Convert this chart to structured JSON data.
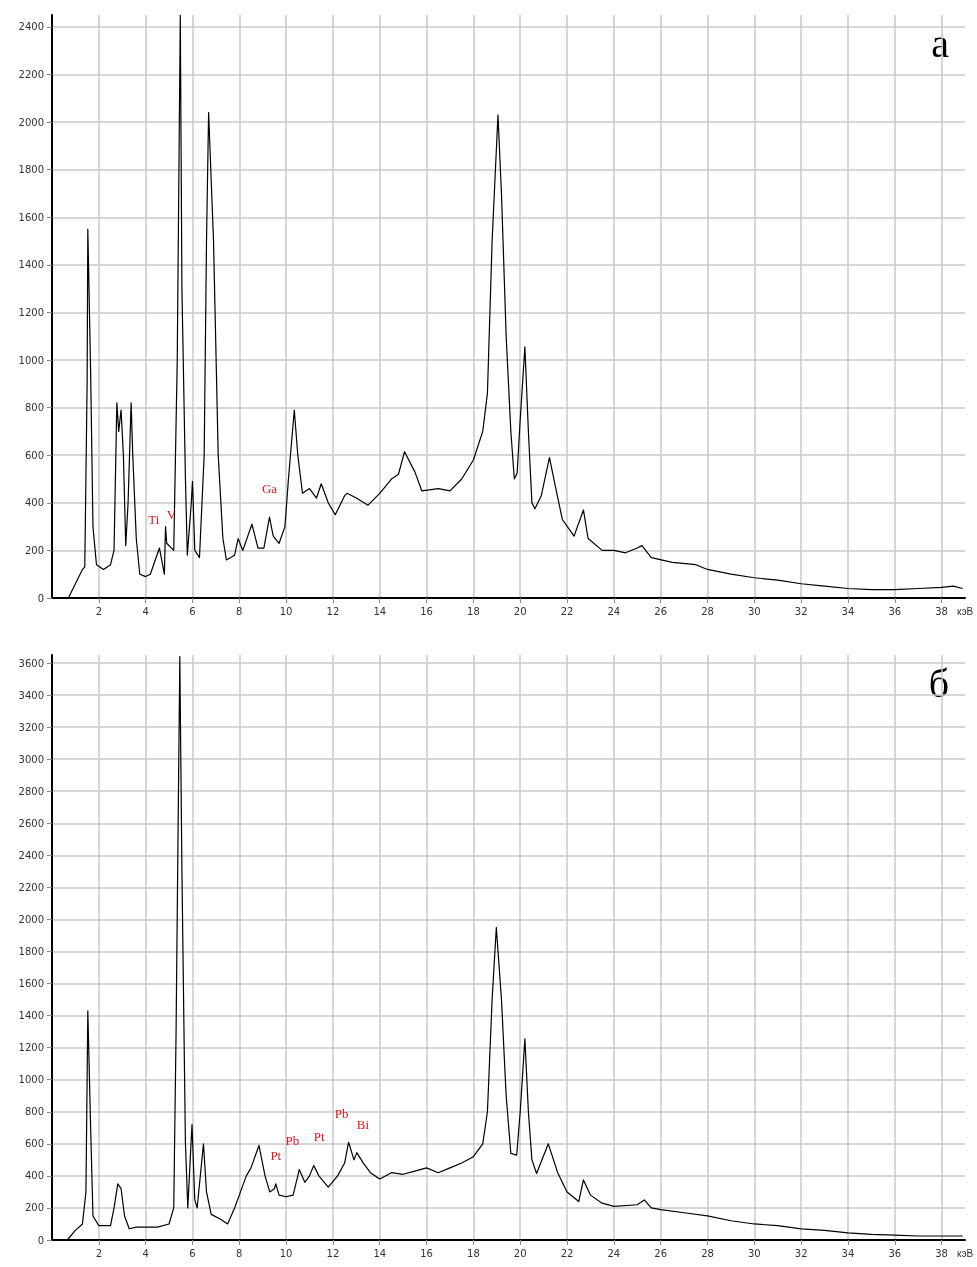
{
  "chart_data": [
    {
      "type": "line",
      "xlabel": "кэВ",
      "xlim": [
        0,
        39
      ],
      "xticks": [
        2,
        4,
        6,
        8,
        10,
        12,
        14,
        16,
        18,
        20,
        22,
        24,
        26,
        28,
        30,
        32,
        34,
        36,
        38
      ],
      "ylim": [
        0,
        2450
      ],
      "yticks": [
        0,
        200,
        400,
        600,
        800,
        1000,
        1200,
        1400,
        1600,
        1800,
        2000,
        2200,
        2400
      ],
      "grid": true,
      "marker": "none",
      "annotations": [
        "а",
        {
          "text": "Ti",
          "x": 4.59,
          "y": 210
        },
        {
          "text": "V",
          "x": 4.9,
          "y": 230
        },
        {
          "text": "Ga",
          "x": 9.29,
          "y": 340
        }
      ],
      "series": [
        {
          "color": "#000000",
          "x": [
            0.7,
            1.0,
            1.3,
            1.4,
            1.5,
            1.53,
            1.65,
            1.75,
            1.9,
            2.2,
            2.5,
            2.65,
            2.77,
            2.85,
            2.95,
            3.05,
            3.15,
            3.25,
            3.38,
            3.45,
            3.6,
            3.75,
            4.0,
            4.2,
            4.59,
            4.8,
            4.85,
            4.9,
            5.2,
            5.35,
            5.48,
            5.55,
            5.7,
            5.78,
            5.95,
            6.0,
            6.1,
            6.3,
            6.5,
            6.6,
            6.69,
            6.9,
            7.1,
            7.3,
            7.45,
            7.8,
            7.95,
            8.15,
            8.54,
            8.8,
            9.05,
            9.29,
            9.45,
            9.7,
            9.95,
            10.1,
            10.35,
            10.5,
            10.7,
            11.0,
            11.3,
            11.5,
            11.8,
            12.1,
            12.5,
            12.6,
            13.0,
            13.5,
            14.0,
            14.5,
            14.8,
            15.06,
            15.5,
            15.8,
            16.5,
            17.0,
            17.5,
            18.0,
            18.4,
            18.6,
            18.8,
            19.05,
            19.2,
            19.4,
            19.6,
            19.75,
            19.87,
            20.0,
            20.2,
            20.35,
            20.5,
            20.63,
            20.9,
            21.25,
            21.5,
            21.8,
            22.3,
            22.7,
            22.9,
            23.5,
            24.0,
            24.5,
            25.0,
            25.2,
            25.6,
            26.5,
            27.5,
            28.0,
            29.0,
            30.0,
            31.0,
            32.0,
            33.0,
            34.0,
            35.0,
            36.0,
            37.0,
            38.0,
            38.5,
            38.9
          ],
          "values": [
            0,
            60,
            120,
            130,
            900,
            1550,
            950,
            300,
            140,
            120,
            140,
            200,
            820,
            700,
            790,
            600,
            220,
            400,
            820,
            600,
            250,
            100,
            90,
            100,
            210,
            100,
            300,
            230,
            200,
            1000,
            2450,
            1300,
            500,
            180,
            400,
            490,
            200,
            170,
            600,
            1500,
            2040,
            1500,
            600,
            250,
            160,
            180,
            250,
            200,
            310,
            210,
            210,
            340,
            260,
            230,
            300,
            500,
            790,
            600,
            440,
            460,
            420,
            480,
            400,
            350,
            430,
            440,
            420,
            390,
            440,
            500,
            520,
            615,
            530,
            450,
            460,
            450,
            500,
            580,
            700,
            860,
            1500,
            2030,
            1700,
            1100,
            700,
            500,
            525,
            750,
            1055,
            700,
            400,
            375,
            430,
            590,
            470,
            330,
            260,
            370,
            250,
            200,
            200,
            190,
            210,
            220,
            170,
            150,
            140,
            120,
            100,
            85,
            75,
            60,
            50,
            40,
            35,
            35,
            40,
            45,
            50,
            40
          ]
        }
      ]
    },
    {
      "type": "line",
      "xlabel": "кэВ",
      "xlim": [
        0,
        39
      ],
      "xticks": [
        2,
        4,
        6,
        8,
        10,
        12,
        14,
        16,
        18,
        20,
        22,
        24,
        26,
        28,
        30,
        32,
        34,
        36,
        38
      ],
      "ylim": [
        0,
        3650
      ],
      "yticks": [
        0,
        200,
        400,
        600,
        800,
        1000,
        1200,
        1400,
        1600,
        1800,
        2000,
        2200,
        2400,
        2600,
        2800,
        3000,
        3200,
        3400,
        3600
      ],
      "grid": true,
      "marker": "none",
      "annotations": [
        "б",
        {
          "text": "Pt",
          "x": 9.56,
          "y": 350
        },
        {
          "text": "Pb",
          "x": 10.56,
          "y": 440
        },
        {
          "text": "Pt",
          "x": 11.18,
          "y": 465
        },
        {
          "text": "Pb",
          "x": 12.67,
          "y": 610
        },
        {
          "text": "Bi",
          "x": 13.02,
          "y": 545
        }
      ],
      "series": [
        {
          "color": "#000000",
          "x": [
            0.65,
            1.0,
            1.3,
            1.45,
            1.53,
            1.65,
            1.75,
            2.0,
            2.5,
            2.65,
            2.81,
            2.95,
            3.1,
            3.3,
            3.6,
            4.0,
            4.5,
            5.0,
            5.2,
            5.3,
            5.46,
            5.55,
            5.7,
            5.8,
            5.98,
            6.1,
            6.2,
            6.47,
            6.6,
            6.8,
            7.2,
            7.5,
            7.8,
            8.0,
            8.3,
            8.5,
            8.84,
            9.1,
            9.3,
            9.5,
            9.56,
            9.7,
            10.0,
            10.3,
            10.5,
            10.56,
            10.8,
            11.0,
            11.18,
            11.4,
            11.8,
            12.2,
            12.5,
            12.67,
            12.9,
            13.02,
            13.3,
            13.6,
            14.0,
            14.5,
            15.0,
            15.5,
            16.0,
            16.5,
            17.0,
            17.5,
            18.0,
            18.4,
            18.6,
            18.8,
            18.98,
            19.2,
            19.4,
            19.6,
            19.85,
            20.0,
            20.2,
            20.35,
            20.5,
            20.7,
            21.2,
            21.6,
            22.0,
            22.5,
            22.7,
            23.0,
            23.5,
            24.0,
            25.0,
            25.3,
            25.6,
            26.0,
            27.0,
            28.0,
            29.0,
            30.0,
            31.0,
            32.0,
            33.0,
            34.0,
            35.0,
            36.0,
            37.0,
            38.0,
            38.9
          ],
          "values": [
            0,
            60,
            100,
            300,
            1430,
            700,
            150,
            90,
            90,
            200,
            350,
            320,
            150,
            70,
            80,
            80,
            80,
            100,
            200,
            1300,
            3640,
            2300,
            600,
            200,
            720,
            250,
            200,
            600,
            300,
            160,
            130,
            100,
            200,
            280,
            400,
            450,
            590,
            400,
            300,
            320,
            350,
            280,
            270,
            280,
            400,
            440,
            360,
            400,
            465,
            400,
            330,
            400,
            480,
            610,
            500,
            545,
            480,
            420,
            380,
            420,
            410,
            430,
            450,
            420,
            450,
            480,
            520,
            600,
            800,
            1500,
            1950,
            1500,
            900,
            540,
            530,
            800,
            1255,
            800,
            500,
            415,
            600,
            420,
            300,
            240,
            375,
            280,
            230,
            210,
            220,
            250,
            200,
            190,
            170,
            150,
            120,
            100,
            90,
            70,
            60,
            45,
            35,
            30,
            25,
            25,
            25
          ]
        }
      ]
    }
  ]
}
